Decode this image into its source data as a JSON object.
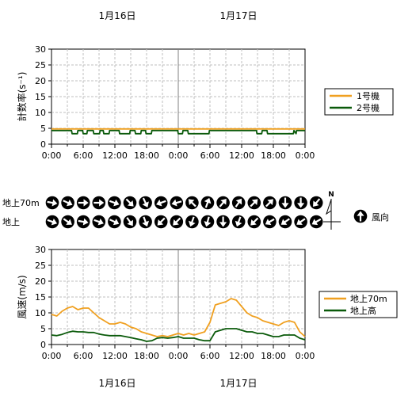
{
  "dates": [
    "1月16日",
    "1月17日"
  ],
  "x_ticks": [
    "0:00",
    "6:00",
    "12:00",
    "18:00",
    "0:00",
    "6:00",
    "12:00",
    "18:00",
    "0:00"
  ],
  "count_chart": {
    "ylabel": "計数率(s⁻¹)",
    "ylim": [
      0,
      30
    ],
    "y_ticks": [
      "0",
      "5",
      "10",
      "15",
      "20",
      "25",
      "30"
    ],
    "grid": true,
    "legend": {
      "placement": "right",
      "items": [
        "1号機",
        "2号機"
      ]
    }
  },
  "wind_direction": {
    "rows": [
      {
        "label": "地上70m",
        "angles": [
          100,
          115,
          90,
          90,
          110,
          135,
          155,
          250,
          255,
          315,
          20,
          40,
          35,
          45,
          45,
          180,
          180,
          220
        ]
      },
      {
        "label": "地上",
        "angles": [
          110,
          125,
          100,
          110,
          115,
          145,
          160,
          225,
          225,
          200,
          195,
          180,
          200,
          225,
          240,
          235,
          235,
          240
        ]
      }
    ],
    "north_label": "N",
    "legend_label": "風向"
  },
  "wind_chart": {
    "ylabel": "風速(m/s)",
    "ylim": [
      0,
      30
    ],
    "y_ticks": [
      "0",
      "5",
      "10",
      "15",
      "20",
      "25",
      "30"
    ],
    "grid": true,
    "legend": {
      "placement": "right",
      "items": [
        "地上70m",
        "地上高"
      ]
    }
  },
  "colors": {
    "orange": "#f0a020",
    "green": "#0a5a0a",
    "grid": "#bfbfbf"
  },
  "chart_data": [
    {
      "type": "line",
      "ylabel": "計数率(s⁻¹)",
      "ylim": [
        0,
        30
      ],
      "xlim": [
        0,
        48
      ],
      "x_unit": "hours from 1月16日 0:00",
      "series": [
        {
          "name": "1号機",
          "x": [
            0,
            48
          ],
          "values": [
            4.8,
            4.8
          ]
        },
        {
          "name": "2号機",
          "x": [
            0,
            3.8,
            3.9,
            4.9,
            5.0,
            5.9,
            6.0,
            6.7,
            6.8,
            7.9,
            8.0,
            9.1,
            9.2,
            9.8,
            9.9,
            10.9,
            11.0,
            12.8,
            12.9,
            14.8,
            14.9,
            15.8,
            15.9,
            16.9,
            17.0,
            17.8,
            17.9,
            18.9,
            19.0,
            23.9,
            24.0,
            24.8,
            24.9,
            25.8,
            25.9,
            29.8,
            29.9,
            38.8,
            38.9,
            39.8,
            39.9,
            40.8,
            40.9,
            45.8,
            45.9,
            46.3,
            46.4,
            48
          ],
          "values": [
            4.3,
            4.3,
            3.3,
            3.3,
            4.3,
            4.3,
            3.3,
            3.3,
            4.3,
            4.3,
            3.3,
            3.3,
            4.3,
            4.3,
            3.3,
            3.3,
            4.3,
            4.3,
            3.3,
            3.3,
            4.3,
            4.3,
            3.3,
            3.3,
            4.3,
            4.3,
            3.3,
            3.3,
            4.3,
            4.3,
            3.3,
            3.3,
            4.3,
            4.3,
            3.3,
            3.3,
            4.3,
            4.3,
            3.3,
            3.3,
            4.3,
            4.3,
            3.3,
            3.3,
            4.3,
            3.3,
            4.3,
            4.3
          ]
        }
      ]
    },
    {
      "type": "line",
      "ylabel": "風速(m/s)",
      "ylim": [
        0,
        30
      ],
      "xlim": [
        0,
        48
      ],
      "x_unit": "hours from 1月16日 0:00",
      "series": [
        {
          "name": "地上70m",
          "x": [
            0,
            1,
            2,
            3,
            4,
            5,
            6,
            7,
            8,
            9,
            10,
            11,
            12,
            13,
            14,
            15,
            16,
            17,
            18,
            19,
            20,
            21,
            22,
            23,
            24,
            25,
            26,
            27,
            28,
            29,
            30,
            31,
            32,
            33,
            34,
            35,
            36,
            37,
            38,
            39,
            40,
            41,
            42,
            43,
            44,
            45,
            46,
            47,
            48
          ],
          "values": [
            9.5,
            9.0,
            10.5,
            11.5,
            12.0,
            11.0,
            11.5,
            11.5,
            10.0,
            8.5,
            7.5,
            6.5,
            6.5,
            7.0,
            6.5,
            5.5,
            5.0,
            4.0,
            3.5,
            3.0,
            2.5,
            2.8,
            2.5,
            3.0,
            3.5,
            3.0,
            3.5,
            3.0,
            3.5,
            4.0,
            7.0,
            12.5,
            13.0,
            13.5,
            14.5,
            14.0,
            12.0,
            10.0,
            9.0,
            8.5,
            7.5,
            7.0,
            6.5,
            6.0,
            7.0,
            7.5,
            7.0,
            4.0,
            2.5
          ]
        },
        {
          "name": "地上高",
          "x": [
            0,
            1,
            2,
            3,
            4,
            5,
            6,
            7,
            8,
            9,
            10,
            11,
            12,
            13,
            14,
            15,
            16,
            17,
            18,
            19,
            20,
            21,
            22,
            23,
            24,
            25,
            26,
            27,
            28,
            29,
            30,
            31,
            32,
            33,
            34,
            35,
            36,
            37,
            38,
            39,
            40,
            41,
            42,
            43,
            44,
            45,
            46,
            47,
            48
          ],
          "values": [
            3.0,
            2.8,
            3.2,
            3.8,
            4.2,
            4.0,
            4.0,
            3.8,
            3.8,
            3.3,
            3.0,
            2.8,
            2.8,
            2.8,
            2.5,
            2.2,
            1.8,
            1.5,
            1.0,
            1.2,
            2.0,
            2.2,
            2.0,
            2.2,
            2.5,
            2.0,
            2.0,
            2.0,
            1.5,
            1.2,
            1.2,
            4.0,
            4.5,
            5.0,
            5.0,
            5.0,
            4.5,
            4.0,
            4.0,
            3.5,
            3.5,
            3.0,
            2.5,
            2.5,
            3.0,
            3.0,
            3.0,
            2.0,
            1.5
          ]
        }
      ]
    }
  ]
}
